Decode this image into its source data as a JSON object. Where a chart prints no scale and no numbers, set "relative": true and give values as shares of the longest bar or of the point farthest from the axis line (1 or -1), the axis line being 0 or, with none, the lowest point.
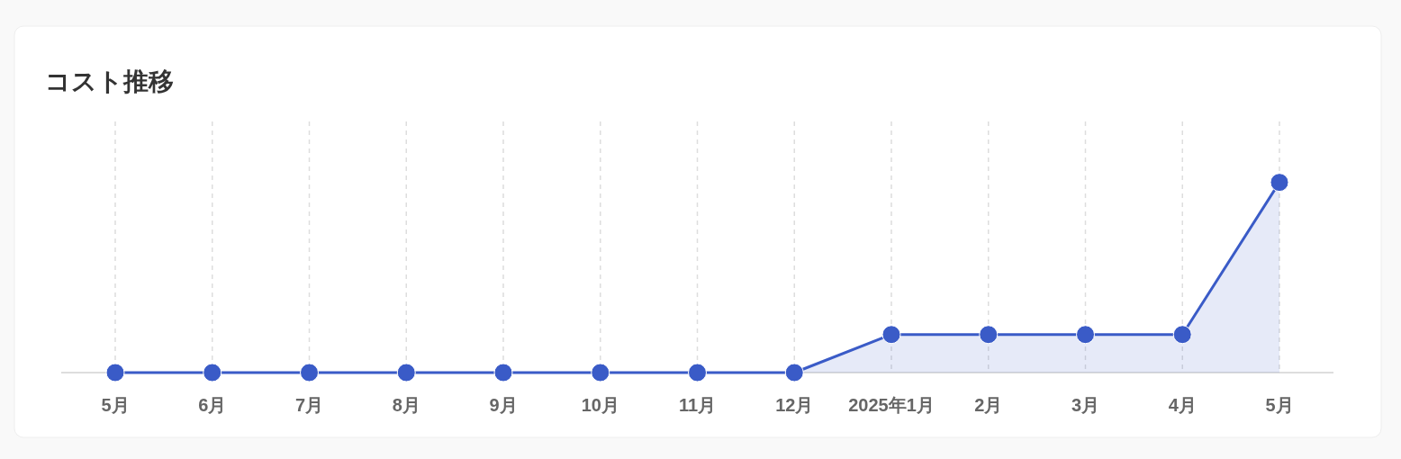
{
  "chart_data": {
    "type": "area",
    "title": "コスト推移",
    "relative": true,
    "categories": [
      "5月",
      "6月",
      "7月",
      "8月",
      "9月",
      "10月",
      "11月",
      "12月",
      "2025年1月",
      "2月",
      "3月",
      "4月",
      "5月"
    ],
    "series": [
      {
        "color": "#3a5bc7",
        "values": [
          0,
          0,
          0,
          0,
          0,
          0,
          0,
          0,
          0.2,
          0.2,
          0.2,
          0.2,
          1
        ]
      }
    ],
    "grid": "x",
    "marker": "circle"
  }
}
